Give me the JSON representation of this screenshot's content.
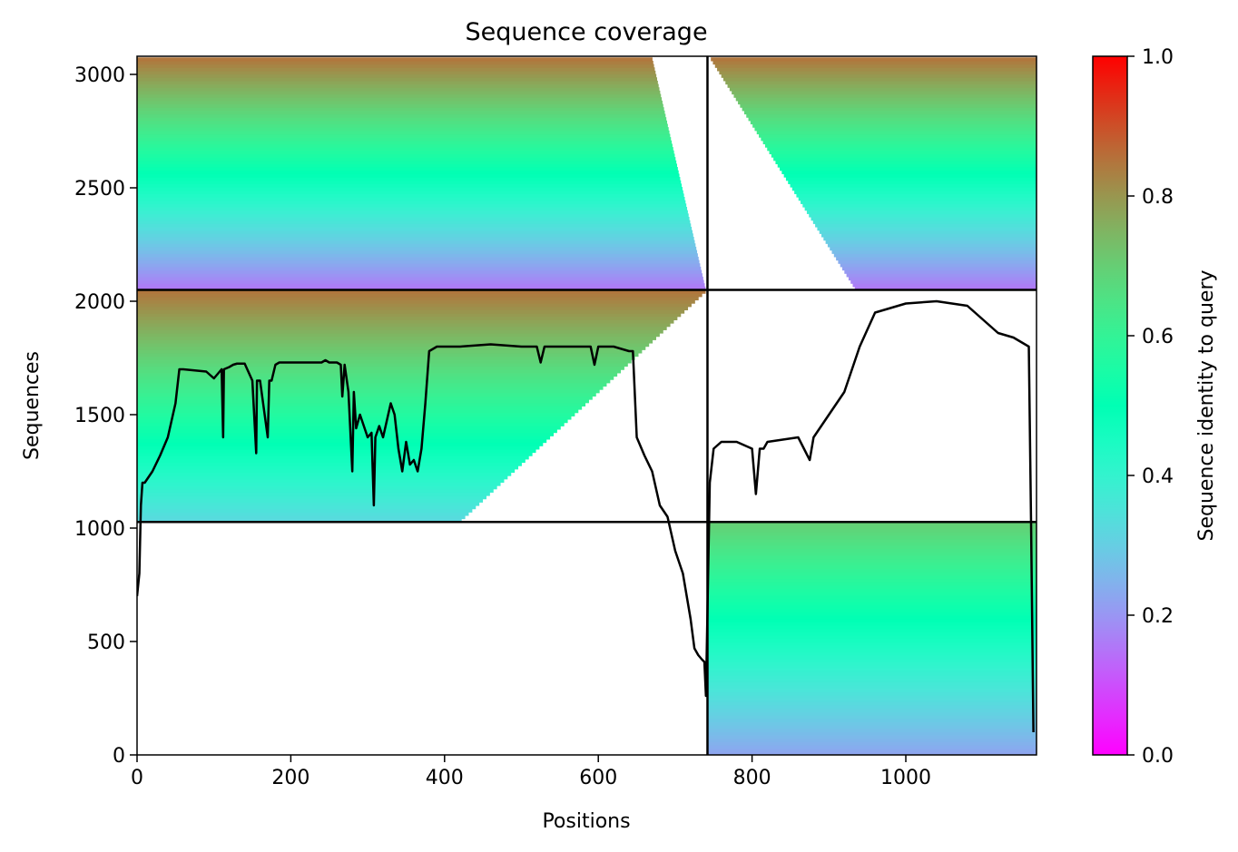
{
  "chart_data": {
    "type": "heatmap",
    "title": "Sequence coverage",
    "xlabel": "Positions",
    "ylabel": "Sequences",
    "xlim": [
      0,
      1170
    ],
    "ylim": [
      0,
      3080
    ],
    "xticks": [
      0,
      200,
      400,
      600,
      800,
      1000
    ],
    "yticks": [
      0,
      500,
      1000,
      1500,
      2000,
      2500,
      3000
    ],
    "colorbar": {
      "label": "Sequence identity to query",
      "ticks": [
        "0.0",
        "0.2",
        "0.4",
        "0.6",
        "0.8",
        "1.0"
      ],
      "range": [
        0,
        1
      ],
      "colormap": "rainbow"
    },
    "boundaries": {
      "x_split": 742,
      "y_splits": [
        1027,
        2050
      ]
    },
    "blocks": [
      {
        "name": "top-left",
        "x": [
          0,
          742
        ],
        "y": [
          2050,
          3075
        ],
        "identity_bottom": 0.15,
        "identity_top": 0.85,
        "coverage_x_end": [
          740,
          670
        ]
      },
      {
        "name": "top-right",
        "x": [
          742,
          1170
        ],
        "y": [
          2050,
          3075
        ],
        "identity_bottom": 0.15,
        "identity_top": 0.85,
        "coverage_x_start": [
          935,
          745
        ]
      },
      {
        "name": "middle-left",
        "x": [
          0,
          742
        ],
        "y": [
          1027,
          2050
        ],
        "identity_bottom": 0.32,
        "identity_top": 0.85,
        "coverage_x_end": [
          420,
          742
        ]
      },
      {
        "name": "bottom-right",
        "x": [
          742,
          1170
        ],
        "y": [
          0,
          1027
        ],
        "identity_bottom": 0.22,
        "identity_top": 0.7,
        "coverage_x_end": [
          1170,
          1170
        ]
      }
    ],
    "series": [
      {
        "type": "line",
        "color": "#000000",
        "x": [
          0,
          3,
          5,
          7,
          10,
          20,
          30,
          40,
          50,
          55,
          60,
          90,
          100,
          110,
          112,
          113,
          120,
          125,
          130,
          140,
          150,
          155,
          156,
          160,
          170,
          172,
          175,
          180,
          185,
          190,
          200,
          220,
          240,
          245,
          250,
          260,
          265,
          267,
          270,
          275,
          280,
          282,
          285,
          290,
          300,
          305,
          308,
          310,
          315,
          320,
          330,
          335,
          340,
          345,
          350,
          355,
          360,
          365,
          370,
          375,
          380,
          390,
          420,
          460,
          500,
          520,
          525,
          530,
          560,
          590,
          595,
          600,
          620,
          640,
          645,
          650,
          660,
          670,
          680,
          690,
          700,
          710,
          715,
          720,
          725,
          730,
          735,
          738,
          740,
          745,
          750,
          760,
          780,
          800,
          805,
          810,
          815,
          820,
          840,
          860,
          875,
          880,
          890,
          900,
          920,
          940,
          960,
          1000,
          1040,
          1080,
          1120,
          1140,
          1160,
          1163,
          1166
        ],
        "y": [
          700,
          800,
          1100,
          1200,
          1200,
          1250,
          1320,
          1400,
          1550,
          1700,
          1700,
          1690,
          1660,
          1700,
          1400,
          1700,
          1710,
          1720,
          1725,
          1725,
          1650,
          1330,
          1650,
          1650,
          1400,
          1650,
          1650,
          1720,
          1730,
          1730,
          1730,
          1730,
          1730,
          1740,
          1730,
          1730,
          1720,
          1580,
          1720,
          1600,
          1250,
          1600,
          1440,
          1500,
          1400,
          1420,
          1100,
          1400,
          1450,
          1400,
          1550,
          1500,
          1350,
          1250,
          1380,
          1280,
          1300,
          1250,
          1350,
          1550,
          1780,
          1800,
          1800,
          1810,
          1800,
          1800,
          1730,
          1800,
          1800,
          1800,
          1720,
          1800,
          1800,
          1780,
          1780,
          1400,
          1320,
          1250,
          1100,
          1050,
          900,
          800,
          700,
          600,
          470,
          440,
          420,
          410,
          260,
          1200,
          1350,
          1380,
          1380,
          1350,
          1150,
          1350,
          1350,
          1380,
          1390,
          1400,
          1300,
          1400,
          1450,
          1500,
          1600,
          1800,
          1950,
          1990,
          2000,
          1980,
          1860,
          1840,
          1800,
          1000,
          100
        ]
      }
    ]
  }
}
